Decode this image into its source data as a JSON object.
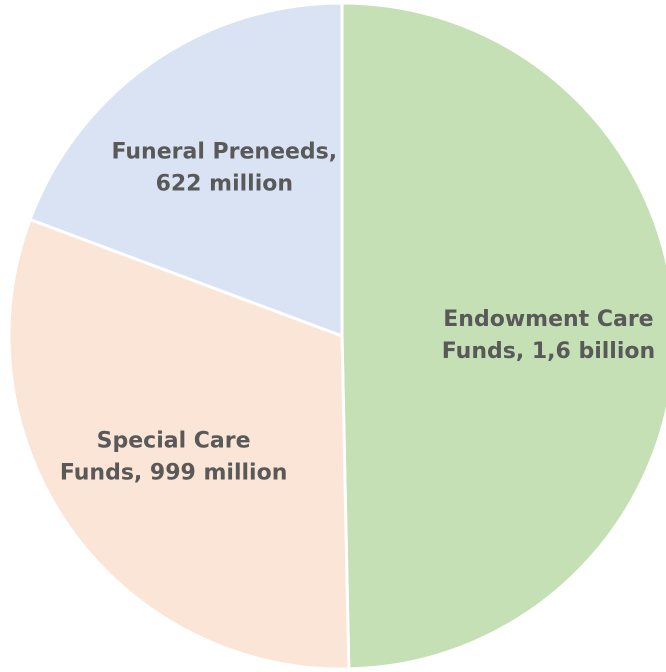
{
  "chart_data": {
    "type": "pie",
    "title": "",
    "slices": [
      {
        "name": "Endowment Care Funds",
        "value": 1600000000,
        "label_lines": [
          "Endowment Care",
          "Funds, 1,6 billion"
        ],
        "color": "#c5e0b4"
      },
      {
        "name": "Special Care Funds",
        "value": 999000000,
        "label_lines": [
          "Special Care",
          "Funds, 999 million"
        ],
        "color": "#fbe5d6"
      },
      {
        "name": "Funeral Preneeds",
        "value": 622000000,
        "label_lines": [
          "Funeral Preneeds,",
          "622 million"
        ],
        "color": "#dae3f3"
      }
    ],
    "start_angle_deg": 0,
    "direction": "clockwise",
    "legend": "none",
    "label_position": "inside"
  }
}
